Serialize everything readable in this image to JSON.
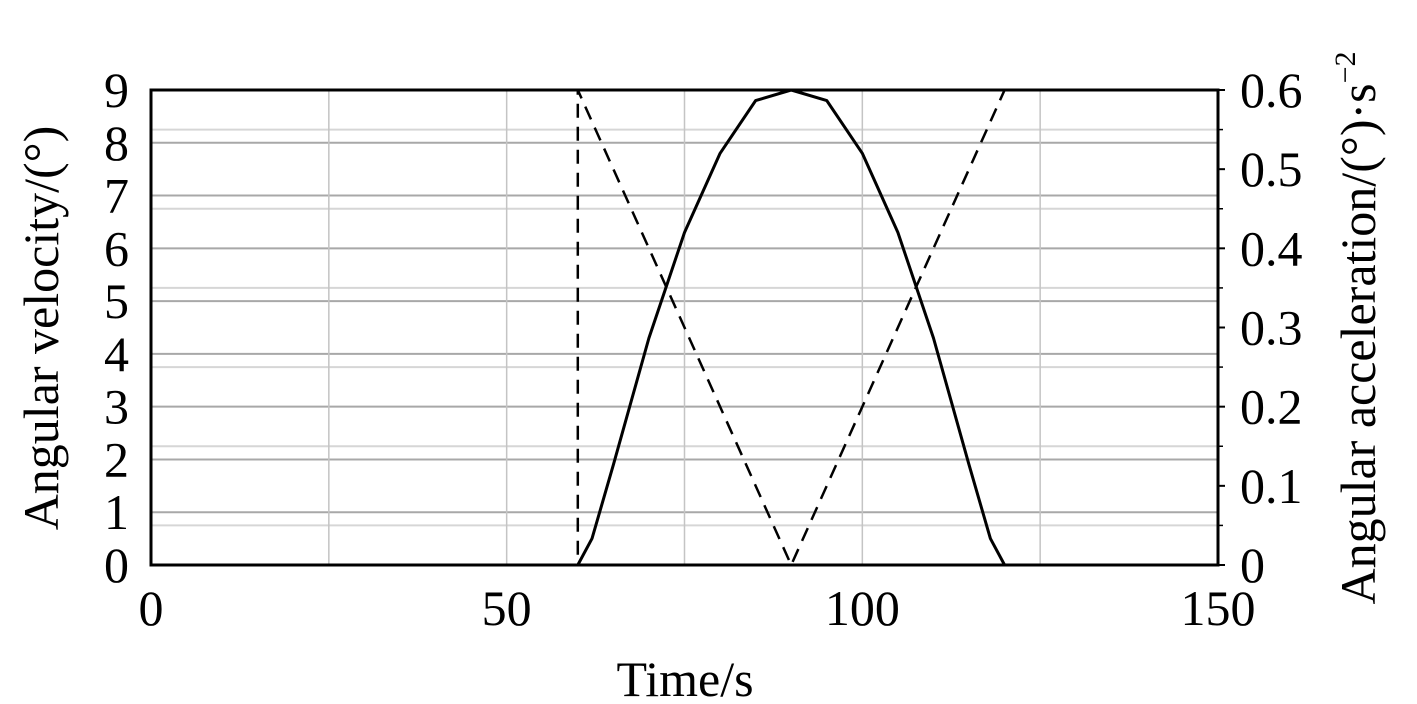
{
  "chart_data": {
    "type": "line",
    "title": "",
    "xlabel": "Time/s",
    "ylabel_left": "Angular velocity/(°)",
    "ylabel_right_main": "Angular acceleration/(°)·s",
    "ylabel_right_exponent": "−2",
    "xlim": [
      0,
      150
    ],
    "ylim_left": [
      0,
      9
    ],
    "ylim_right": [
      0,
      0.6
    ],
    "x_ticks": [
      "0",
      "50",
      "100",
      "150"
    ],
    "y_left_ticks": [
      "0",
      "1",
      "2",
      "3",
      "4",
      "5",
      "6",
      "7",
      "8",
      "9"
    ],
    "y_right_ticks": [
      "0",
      "0.1",
      "0.2",
      "0.3",
      "0.4",
      "0.5",
      "0.6"
    ],
    "grid": true,
    "series": [
      {
        "axis": "left",
        "style": "solid",
        "x": [
          0,
          60,
          62,
          65,
          70,
          75,
          80,
          85,
          90,
          95,
          100,
          105,
          110,
          115,
          118,
          120,
          150
        ],
        "values": [
          0,
          0,
          0.5,
          1.9,
          4.3,
          6.3,
          7.8,
          8.8,
          9.0,
          8.8,
          7.8,
          6.3,
          4.3,
          1.9,
          0.5,
          0,
          0
        ]
      },
      {
        "axis": "right",
        "style": "dashed",
        "x": [
          0,
          60,
          60,
          90,
          120
        ],
        "values": [
          0,
          0,
          0.6,
          0,
          0.6
        ]
      }
    ]
  }
}
